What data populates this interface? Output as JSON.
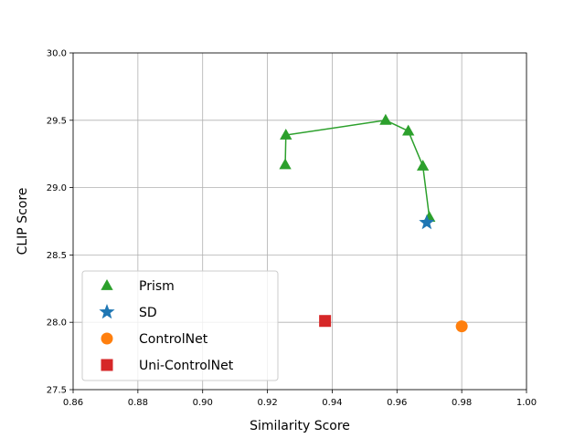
{
  "chart_data": {
    "type": "scatter",
    "xlabel": "Similarity Score",
    "ylabel": "CLIP Score",
    "xlim": [
      0.86,
      1.0
    ],
    "ylim": [
      27.5,
      30.0
    ],
    "x_ticks": [
      "0.86",
      "0.88",
      "0.90",
      "0.92",
      "0.94",
      "0.96",
      "0.98",
      "1.00"
    ],
    "y_ticks": [
      "27.5",
      "28.0",
      "28.5",
      "29.0",
      "29.5",
      "30.0"
    ],
    "grid": true,
    "legend_position": "lower-left",
    "series": [
      {
        "name": "Prism",
        "marker": "triangle",
        "color": "#2ca02c",
        "connected": true,
        "points": [
          {
            "x": 0.9255,
            "y": 29.17
          },
          {
            "x": 0.9257,
            "y": 29.39
          },
          {
            "x": 0.9565,
            "y": 29.5
          },
          {
            "x": 0.9635,
            "y": 29.42
          },
          {
            "x": 0.968,
            "y": 29.16
          },
          {
            "x": 0.97,
            "y": 28.78
          }
        ]
      },
      {
        "name": "SD",
        "marker": "star",
        "color": "#1f77b4",
        "connected": false,
        "points": [
          {
            "x": 0.9692,
            "y": 28.74
          }
        ]
      },
      {
        "name": "ControlNet",
        "marker": "circle",
        "color": "#ff7f0e",
        "connected": false,
        "points": [
          {
            "x": 0.98,
            "y": 27.97
          }
        ]
      },
      {
        "name": "Uni-ControlNet",
        "marker": "square",
        "color": "#d62728",
        "connected": false,
        "points": [
          {
            "x": 0.9378,
            "y": 28.01
          }
        ]
      }
    ]
  }
}
